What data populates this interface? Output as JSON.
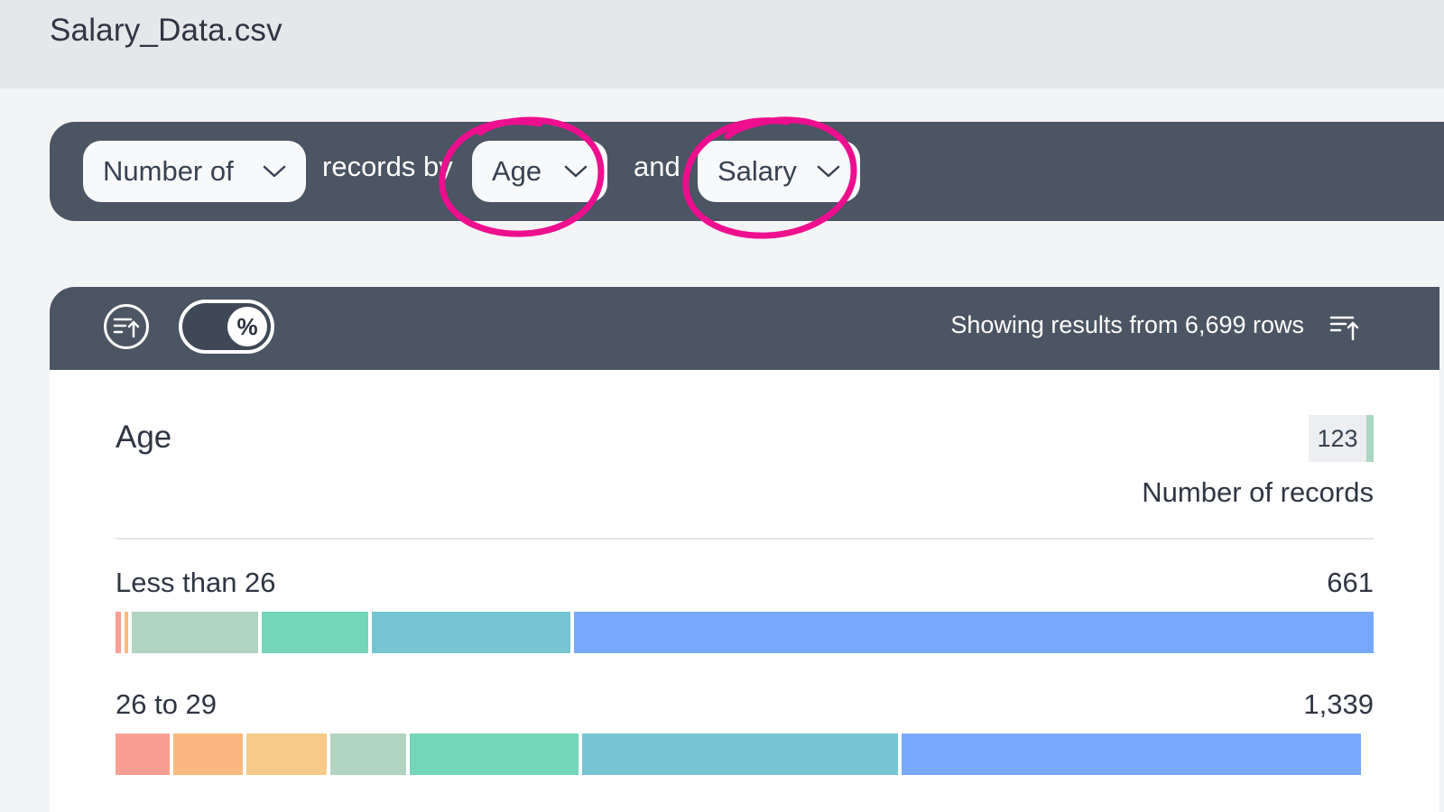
{
  "file": {
    "title": "Salary_Data.csv"
  },
  "query": {
    "measure": "Number of",
    "records_text": "records by",
    "dimension1": "Age",
    "and_text": "and",
    "dimension2": "Salary"
  },
  "panel": {
    "toggle_symbol": "%",
    "rows_text": "Showing results from 6,699 rows",
    "dimension_title": "Age",
    "legend_value": "123",
    "measure_label": "Number of records"
  },
  "colors": {
    "annotation": "#ee0f8f",
    "bar_header": "#4b5563",
    "segments": [
      "#fa9e93",
      "#f9b97e",
      "#f7cb87",
      "#b0d4c0",
      "#73d6b8",
      "#76c5d2",
      "#78a8fb"
    ]
  },
  "rows": [
    {
      "label": "Less than 26",
      "value": "661",
      "segments": [
        0.004,
        0.003,
        0.0,
        0.102,
        0.086,
        0.16,
        0.645
      ]
    },
    {
      "label": "26 to 29",
      "value": "1,339",
      "segments": [
        0.044,
        0.056,
        0.065,
        0.061,
        0.137,
        0.255,
        0.372
      ]
    }
  ]
}
